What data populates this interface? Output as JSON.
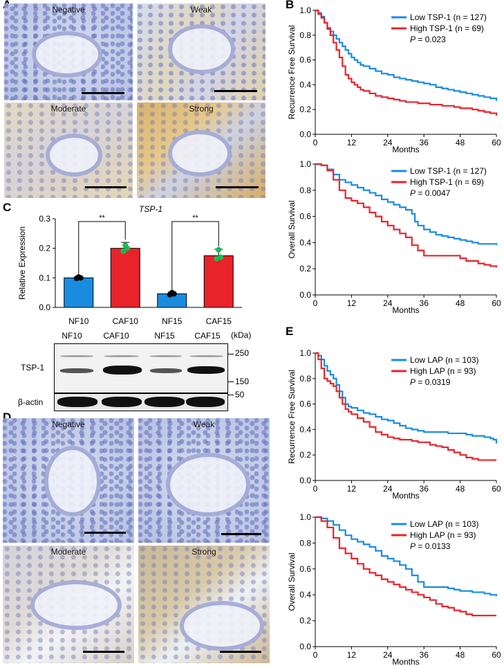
{
  "panels": {
    "A": {
      "letter": "A",
      "images": [
        {
          "label": "Negative"
        },
        {
          "label": "Weak"
        },
        {
          "label": "Moderate"
        },
        {
          "label": "Strong"
        }
      ]
    },
    "C": {
      "letter": "C",
      "blot": {
        "lanes_top": [
          "NF10",
          "CAF10",
          "NF15",
          "CAF15"
        ],
        "kda_label": "(kDa)",
        "markers": [
          "250",
          "150",
          "50"
        ],
        "tsp1_label": "TSP-1",
        "actin_label": "β-actin"
      }
    },
    "D": {
      "letter": "D",
      "images": [
        {
          "label": "Negative"
        },
        {
          "label": "Weak"
        },
        {
          "label": "Moderate"
        },
        {
          "label": "Strong"
        }
      ]
    },
    "B": {
      "letter": "B"
    },
    "E": {
      "letter": "E"
    }
  },
  "colors": {
    "low": "#1a8ce0",
    "high": "#e8232a"
  },
  "chart_data": [
    {
      "id": "bar-tsp1",
      "type": "bar",
      "title": "TSP-1",
      "ylabel": "Relative Expression",
      "categories": [
        "NF10",
        "CAF10",
        "NF15",
        "CAF15"
      ],
      "values": [
        0.1,
        0.2,
        0.046,
        0.175
      ],
      "errors": [
        0.004,
        0.02,
        0.006,
        0.022
      ],
      "bar_colors": [
        "#1a8ce0",
        "#e8232a",
        "#1a8ce0",
        "#e8232a"
      ],
      "points": [
        [
          0.098,
          0.103,
          0.1
        ],
        [
          0.19,
          0.21,
          0.2
        ],
        [
          0.043,
          0.05,
          0.046
        ],
        [
          0.165,
          0.195,
          0.17
        ]
      ],
      "point_colors": [
        "#000000",
        "#1db954",
        "#000000",
        "#1db954"
      ],
      "ylim": [
        0,
        0.3
      ],
      "yticks": [
        "0.0",
        "0.1",
        "0.2",
        "0.3"
      ],
      "significance": [
        {
          "pair": [
            0,
            1
          ],
          "label": "**"
        },
        {
          "pair": [
            2,
            3
          ],
          "label": "**"
        }
      ]
    },
    {
      "id": "km-b1",
      "type": "line",
      "ylabel": "Recurrence Free Survival",
      "xlabel": "Months",
      "xlim": [
        0,
        60
      ],
      "ylim": [
        0,
        1.0
      ],
      "xticks": [
        "0",
        "12",
        "24",
        "36",
        "48",
        "60"
      ],
      "yticks": [
        "0.0",
        "0.2",
        "0.4",
        "0.6",
        "0.8",
        "1.0"
      ],
      "legend": [
        "Low TSP-1 (n = 127)",
        "High TSP-1 (n = 69)"
      ],
      "p_prefix": "P",
      "p_value": " = 0.023",
      "series": [
        {
          "name": "Low TSP-1 (n = 127)",
          "x": [
            0,
            1,
            2,
            3,
            4,
            5,
            6,
            7,
            8,
            9,
            10,
            11,
            12,
            13,
            14,
            15,
            16,
            18,
            20,
            22,
            24,
            26,
            28,
            30,
            32,
            34,
            36,
            38,
            40,
            42,
            44,
            46,
            48,
            50,
            52,
            54,
            56,
            58,
            60
          ],
          "y": [
            1.0,
            0.98,
            0.95,
            0.9,
            0.86,
            0.83,
            0.8,
            0.77,
            0.74,
            0.71,
            0.68,
            0.65,
            0.62,
            0.6,
            0.58,
            0.56,
            0.55,
            0.53,
            0.51,
            0.49,
            0.48,
            0.46,
            0.45,
            0.44,
            0.43,
            0.42,
            0.41,
            0.4,
            0.38,
            0.37,
            0.36,
            0.35,
            0.34,
            0.33,
            0.32,
            0.31,
            0.3,
            0.29,
            0.27
          ]
        },
        {
          "name": "High TSP-1 (n = 69)",
          "x": [
            0,
            1,
            2,
            3,
            4,
            5,
            6,
            7,
            8,
            9,
            10,
            11,
            12,
            13,
            14,
            15,
            16,
            18,
            20,
            22,
            24,
            26,
            28,
            30,
            32,
            34,
            36,
            38,
            40,
            42,
            44,
            46,
            48,
            50,
            52,
            54,
            56,
            58,
            60
          ],
          "y": [
            1.0,
            0.97,
            0.94,
            0.9,
            0.85,
            0.8,
            0.74,
            0.68,
            0.62,
            0.55,
            0.48,
            0.45,
            0.42,
            0.4,
            0.38,
            0.36,
            0.35,
            0.33,
            0.31,
            0.3,
            0.29,
            0.28,
            0.27,
            0.26,
            0.26,
            0.25,
            0.25,
            0.24,
            0.24,
            0.23,
            0.23,
            0.22,
            0.21,
            0.21,
            0.2,
            0.19,
            0.18,
            0.17,
            0.15
          ]
        }
      ]
    },
    {
      "id": "km-b2",
      "type": "line",
      "ylabel": "Overall Survival",
      "xlabel": "Months",
      "xlim": [
        0,
        60
      ],
      "ylim": [
        0,
        1.0
      ],
      "xticks": [
        "0",
        "12",
        "24",
        "36",
        "48",
        "60"
      ],
      "yticks": [
        "0.0",
        "0.2",
        "0.4",
        "0.6",
        "0.8",
        "1.0"
      ],
      "legend": [
        "Low TSP-1 (n = 127)",
        "High TSP-1 (n = 69)"
      ],
      "p_prefix": "P",
      "p_value": " = 0.0047",
      "series": [
        {
          "name": "Low TSP-1 (n = 127)",
          "x": [
            0,
            2,
            4,
            6,
            8,
            10,
            12,
            14,
            16,
            18,
            20,
            22,
            24,
            26,
            28,
            30,
            32,
            33,
            34,
            36,
            38,
            40,
            42,
            44,
            46,
            48,
            50,
            52,
            54,
            56,
            58,
            60
          ],
          "y": [
            1.0,
            0.99,
            0.96,
            0.92,
            0.88,
            0.86,
            0.84,
            0.82,
            0.8,
            0.78,
            0.76,
            0.73,
            0.71,
            0.69,
            0.67,
            0.65,
            0.62,
            0.56,
            0.53,
            0.5,
            0.48,
            0.46,
            0.45,
            0.44,
            0.43,
            0.42,
            0.41,
            0.4,
            0.39,
            0.39,
            0.39,
            0.38
          ]
        },
        {
          "name": "High TSP-1 (n = 69)",
          "x": [
            0,
            2,
            4,
            6,
            8,
            10,
            12,
            14,
            16,
            18,
            20,
            22,
            24,
            26,
            28,
            30,
            32,
            34,
            36,
            38,
            40,
            42,
            44,
            46,
            48,
            50,
            52,
            54,
            56,
            58,
            60
          ],
          "y": [
            1.0,
            0.99,
            0.95,
            0.88,
            0.8,
            0.74,
            0.72,
            0.7,
            0.67,
            0.63,
            0.6,
            0.56,
            0.53,
            0.5,
            0.47,
            0.44,
            0.38,
            0.34,
            0.3,
            0.3,
            0.3,
            0.3,
            0.3,
            0.3,
            0.28,
            0.26,
            0.26,
            0.24,
            0.23,
            0.22,
            0.21
          ]
        }
      ]
    },
    {
      "id": "km-e1",
      "type": "line",
      "ylabel": "Recurrence Free Survival",
      "xlabel": "Months",
      "xlim": [
        0,
        60
      ],
      "ylim": [
        0,
        1.0
      ],
      "xticks": [
        "0",
        "12",
        "24",
        "36",
        "48",
        "60"
      ],
      "yticks": [
        "0.0",
        "0.2",
        "0.4",
        "0.6",
        "0.8",
        "1.0"
      ],
      "legend": [
        "Low LAP (n = 103)",
        "High LAP (n = 93)"
      ],
      "p_prefix": "P",
      "p_value": " = 0.0319",
      "series": [
        {
          "name": "Low LAP (n = 103)",
          "x": [
            0,
            1,
            2,
            3,
            4,
            5,
            6,
            7,
            8,
            9,
            10,
            11,
            12,
            14,
            16,
            18,
            20,
            22,
            24,
            26,
            28,
            30,
            32,
            34,
            36,
            38,
            40,
            42,
            44,
            46,
            48,
            50,
            52,
            54,
            56,
            58,
            59,
            60
          ],
          "y": [
            1.0,
            0.98,
            0.95,
            0.9,
            0.86,
            0.83,
            0.8,
            0.75,
            0.7,
            0.65,
            0.6,
            0.58,
            0.57,
            0.55,
            0.53,
            0.52,
            0.5,
            0.48,
            0.47,
            0.45,
            0.43,
            0.41,
            0.4,
            0.39,
            0.38,
            0.38,
            0.38,
            0.38,
            0.37,
            0.37,
            0.37,
            0.36,
            0.35,
            0.35,
            0.34,
            0.33,
            0.32,
            0.29
          ]
        },
        {
          "name": "High LAP (n = 93)",
          "x": [
            0,
            1,
            2,
            3,
            4,
            5,
            6,
            7,
            8,
            9,
            10,
            11,
            12,
            14,
            16,
            18,
            20,
            22,
            24,
            26,
            28,
            30,
            32,
            34,
            36,
            38,
            40,
            42,
            44,
            46,
            48,
            50,
            52,
            54,
            56,
            58,
            60
          ],
          "y": [
            1.0,
            0.95,
            0.88,
            0.8,
            0.78,
            0.76,
            0.74,
            0.7,
            0.65,
            0.6,
            0.56,
            0.54,
            0.52,
            0.49,
            0.46,
            0.42,
            0.38,
            0.36,
            0.34,
            0.33,
            0.32,
            0.32,
            0.31,
            0.3,
            0.3,
            0.28,
            0.27,
            0.26,
            0.24,
            0.22,
            0.2,
            0.18,
            0.17,
            0.16,
            0.16,
            0.16,
            0.16
          ]
        }
      ]
    },
    {
      "id": "km-e2",
      "type": "line",
      "ylabel": "Overall Survival",
      "xlabel": "Months",
      "xlim": [
        0,
        60
      ],
      "ylim": [
        0,
        1.0
      ],
      "xticks": [
        "0",
        "12",
        "24",
        "36",
        "48",
        "60"
      ],
      "yticks": [
        "0.0",
        "0.2",
        "0.4",
        "0.6",
        "0.8",
        "1.0"
      ],
      "legend": [
        "Low LAP (n = 103)",
        "High LAP (n = 93)"
      ],
      "p_prefix": "P",
      "p_value": " = 0.0133",
      "series": [
        {
          "name": "Low LAP (n = 103)",
          "x": [
            0,
            2,
            4,
            6,
            8,
            10,
            12,
            14,
            16,
            18,
            20,
            22,
            24,
            26,
            28,
            30,
            32,
            34,
            36,
            38,
            40,
            42,
            44,
            46,
            48,
            50,
            52,
            54,
            56,
            58,
            60
          ],
          "y": [
            1.0,
            0.99,
            0.97,
            0.94,
            0.9,
            0.86,
            0.83,
            0.81,
            0.79,
            0.77,
            0.74,
            0.7,
            0.68,
            0.66,
            0.63,
            0.6,
            0.55,
            0.5,
            0.46,
            0.46,
            0.46,
            0.46,
            0.45,
            0.44,
            0.43,
            0.43,
            0.42,
            0.42,
            0.41,
            0.4,
            0.39
          ]
        },
        {
          "name": "High LAP (n = 93)",
          "x": [
            0,
            2,
            4,
            6,
            8,
            10,
            12,
            14,
            16,
            18,
            20,
            22,
            24,
            26,
            28,
            30,
            32,
            34,
            36,
            38,
            40,
            42,
            44,
            46,
            48,
            50,
            52,
            54,
            56,
            58,
            60
          ],
          "y": [
            1.0,
            0.97,
            0.92,
            0.84,
            0.76,
            0.72,
            0.68,
            0.64,
            0.6,
            0.57,
            0.55,
            0.52,
            0.5,
            0.48,
            0.46,
            0.44,
            0.42,
            0.4,
            0.38,
            0.36,
            0.33,
            0.31,
            0.3,
            0.28,
            0.27,
            0.25,
            0.24,
            0.24,
            0.24,
            0.24,
            0.24
          ]
        }
      ]
    }
  ]
}
